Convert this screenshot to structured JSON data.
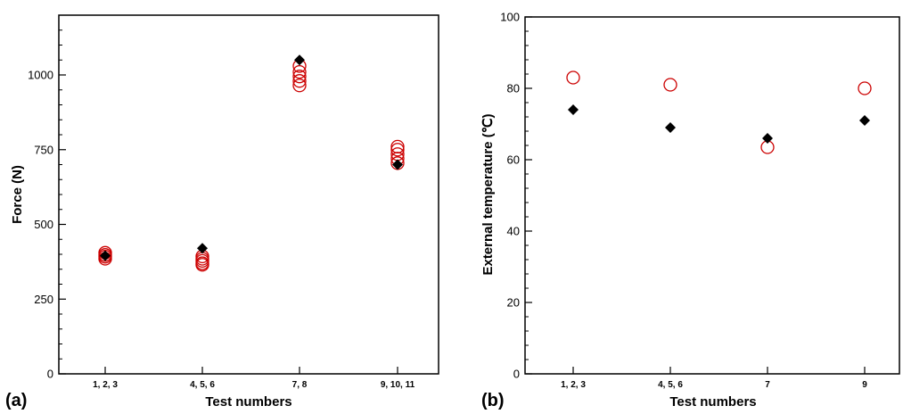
{
  "chart_data": [
    {
      "type": "scatter",
      "panel_label": "(a)",
      "xlabel": "Test numbers",
      "ylabel": "Force (N)",
      "ylim": [
        0,
        1200
      ],
      "yticks": [
        0,
        250,
        500,
        750,
        1000
      ],
      "categories": [
        "1, 2, 3",
        "4, 5, 6",
        "7, 8",
        "9, 10, 11"
      ],
      "series": [
        {
          "marker": "open-circle",
          "color": "#cc0000",
          "points": [
            {
              "x": "1, 2, 3",
              "y": 405
            },
            {
              "x": "1, 2, 3",
              "y": 398
            },
            {
              "x": "1, 2, 3",
              "y": 392
            },
            {
              "x": "1, 2, 3",
              "y": 385
            },
            {
              "x": "4, 5, 6",
              "y": 393
            },
            {
              "x": "4, 5, 6",
              "y": 385
            },
            {
              "x": "4, 5, 6",
              "y": 378
            },
            {
              "x": "4, 5, 6",
              "y": 370
            },
            {
              "x": "4, 5, 6",
              "y": 365
            },
            {
              "x": "7, 8",
              "y": 1030
            },
            {
              "x": "7, 8",
              "y": 1010
            },
            {
              "x": "7, 8",
              "y": 995
            },
            {
              "x": "7, 8",
              "y": 980
            },
            {
              "x": "7, 8",
              "y": 965
            },
            {
              "x": "9, 10, 11",
              "y": 760
            },
            {
              "x": "9, 10, 11",
              "y": 750
            },
            {
              "x": "9, 10, 11",
              "y": 735
            },
            {
              "x": "9, 10, 11",
              "y": 720
            },
            {
              "x": "9, 10, 11",
              "y": 705
            }
          ]
        },
        {
          "marker": "filled-diamond",
          "color": "#000000",
          "points": [
            {
              "x": "1, 2, 3",
              "y": 395
            },
            {
              "x": "4, 5, 6",
              "y": 420
            },
            {
              "x": "7, 8",
              "y": 1050
            },
            {
              "x": "9, 10, 11",
              "y": 700
            }
          ]
        }
      ]
    },
    {
      "type": "scatter",
      "panel_label": "(b)",
      "xlabel": "Test numbers",
      "ylabel": "External temperature (℃)",
      "ylim": [
        0,
        100
      ],
      "yticks": [
        0,
        20,
        40,
        60,
        80,
        100
      ],
      "categories": [
        "1, 2, 3",
        "4, 5, 6",
        "7",
        "9"
      ],
      "series": [
        {
          "marker": "open-circle",
          "color": "#cc0000",
          "points": [
            {
              "x": "1, 2, 3",
              "y": 83
            },
            {
              "x": "4, 5, 6",
              "y": 81
            },
            {
              "x": "7",
              "y": 63.5
            },
            {
              "x": "9",
              "y": 80
            }
          ]
        },
        {
          "marker": "filled-diamond",
          "color": "#000000",
          "points": [
            {
              "x": "1, 2, 3",
              "y": 74
            },
            {
              "x": "4, 5, 6",
              "y": 69
            },
            {
              "x": "7",
              "y": 66
            },
            {
              "x": "9",
              "y": 71
            }
          ]
        }
      ]
    }
  ]
}
